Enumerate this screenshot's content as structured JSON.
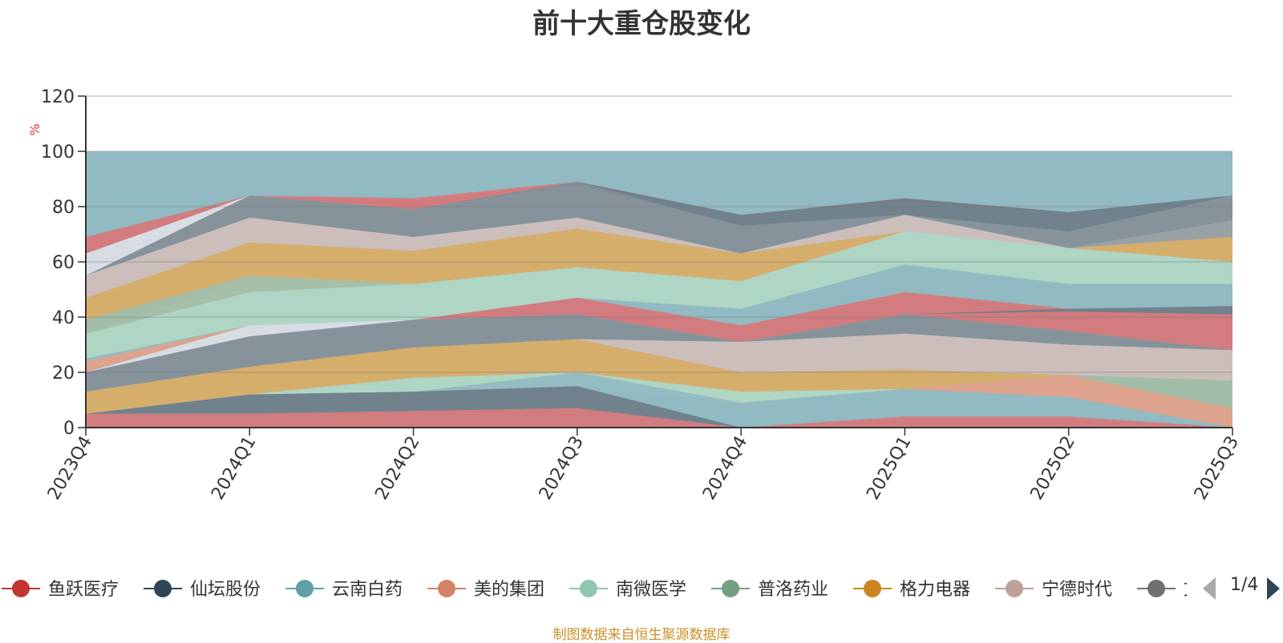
{
  "chart_data": {
    "type": "area",
    "stacked": false,
    "title": "前十大重仓股变化",
    "ylabel": "%",
    "xlabel": "",
    "ylim": [
      0,
      120
    ],
    "yticks": [
      0,
      20,
      40,
      60,
      80,
      100,
      120
    ],
    "grid": true,
    "categories": [
      "2023Q4",
      "2024Q1",
      "2024Q2",
      "2024Q3",
      "2024Q4",
      "2025Q1",
      "2025Q2",
      "2025Q3"
    ],
    "background_band": {
      "from": 0,
      "to": 100,
      "color": "#91bac2"
    },
    "bands": [
      {
        "name": "band-1",
        "color": "#d9767a",
        "lower": [
          63,
          84,
          79,
          88,
          77,
          82,
          78,
          83
        ],
        "upper": [
          69,
          84,
          83,
          89,
          77,
          83,
          78,
          83
        ]
      },
      {
        "name": "band-2",
        "color": "#dde0e6",
        "lower": [
          55,
          84,
          79,
          88,
          77,
          82,
          78,
          83
        ],
        "upper": [
          63,
          84,
          79,
          88,
          77,
          82,
          78,
          83
        ]
      },
      {
        "name": "band-3",
        "color": "#6f7d88",
        "lower": [
          55,
          84,
          79,
          88,
          73,
          77,
          71,
          84
        ],
        "upper": [
          55,
          84,
          79,
          89,
          77,
          83,
          78,
          84
        ]
      },
      {
        "name": "band-4",
        "color": "#858f97",
        "lower": [
          55,
          76,
          69,
          76,
          63,
          77,
          65,
          75
        ],
        "upper": [
          55,
          84,
          79,
          89,
          73,
          77,
          71,
          84
        ]
      },
      {
        "name": "band-5",
        "color": "#9a9ea3",
        "lower": [
          55,
          76,
          69,
          76,
          63,
          77,
          65,
          69
        ],
        "upper": [
          55,
          76,
          69,
          76,
          63,
          77,
          65,
          75
        ]
      },
      {
        "name": "band-6",
        "color": "#d1bebb",
        "lower": [
          47,
          67,
          64,
          72,
          63,
          71,
          65,
          69
        ],
        "upper": [
          55,
          76,
          69,
          76,
          63,
          77,
          65,
          69
        ]
      },
      {
        "name": "band-7",
        "color": "#dcac65",
        "lower": [
          39,
          55,
          52,
          58,
          53,
          71,
          65,
          60
        ],
        "upper": [
          47,
          67,
          64,
          72,
          63,
          71,
          65,
          69
        ]
      },
      {
        "name": "band-8",
        "color": "#b2d8c5",
        "lower": [
          25,
          49,
          52,
          58,
          53,
          59,
          52,
          52
        ],
        "upper": [
          34,
          55,
          52,
          58,
          53,
          71,
          65,
          60
        ]
      },
      {
        "name": "band-9",
        "color": "#a4bda5",
        "lower": [
          34,
          49,
          52,
          58,
          53,
          71,
          65,
          60
        ],
        "upper": [
          39,
          55,
          52,
          58,
          53,
          71,
          65,
          60
        ]
      },
      {
        "name": "band-10",
        "color": "#b2d8c5",
        "lower": [
          25,
          37,
          39,
          47,
          43,
          59,
          52,
          52
        ],
        "upper": [
          25,
          49,
          52,
          58,
          53,
          59,
          52,
          52
        ]
      },
      {
        "name": "band-11",
        "color": "#91bac2",
        "lower": [
          25,
          37,
          39,
          47,
          37,
          49,
          43,
          44
        ],
        "upper": [
          25,
          37,
          39,
          47,
          43,
          59,
          52,
          52
        ]
      },
      {
        "name": "band-12",
        "color": "#d9767a",
        "lower": [
          24,
          37,
          39,
          41,
          31,
          41,
          35,
          28
        ],
        "upper": [
          24,
          37,
          39,
          47,
          37,
          49,
          43,
          41
        ]
      },
      {
        "name": "band-13",
        "color": "#6f7d88",
        "lower": [
          41,
          41,
          41,
          41,
          41,
          41,
          42,
          41
        ],
        "upper": [
          41,
          41,
          41,
          41,
          41,
          41,
          43,
          44
        ]
      },
      {
        "name": "band-14",
        "color": "#e3a18a",
        "lower": [
          20,
          37,
          39,
          41,
          31,
          41,
          35,
          28
        ],
        "upper": [
          24,
          37,
          39,
          41,
          31,
          41,
          35,
          28
        ]
      },
      {
        "name": "band-15",
        "color": "#dde0e6",
        "lower": [
          20,
          33,
          39,
          41,
          31,
          41,
          35,
          28
        ],
        "upper": [
          20,
          37,
          39,
          41,
          31,
          41,
          35,
          28
        ]
      },
      {
        "name": "band-16",
        "color": "#858f97",
        "lower": [
          20,
          33,
          39,
          32,
          31,
          34,
          30,
          28
        ],
        "upper": [
          20,
          33,
          39,
          41,
          31,
          41,
          35,
          28
        ]
      },
      {
        "name": "band-17",
        "color": "#858f97",
        "lower": [
          13,
          22,
          29,
          32,
          31,
          34,
          30,
          28
        ],
        "upper": [
          20,
          33,
          39,
          32,
          31,
          34,
          30,
          28
        ]
      },
      {
        "name": "band-18",
        "color": "#d1bebb",
        "lower": [
          13,
          22,
          29,
          32,
          20,
          21,
          19,
          17
        ],
        "upper": [
          13,
          22,
          29,
          32,
          31,
          34,
          30,
          28
        ]
      },
      {
        "name": "band-19",
        "color": "#dcac65",
        "lower": [
          5,
          12,
          18,
          20,
          13,
          14,
          19,
          17
        ],
        "upper": [
          13,
          22,
          29,
          32,
          20,
          21,
          19,
          17
        ]
      },
      {
        "name": "band-20",
        "color": "#a4bda5",
        "lower": [
          5,
          12,
          13,
          15,
          9,
          14,
          11,
          7
        ],
        "upper": [
          5,
          12,
          13,
          15,
          13,
          14,
          19,
          17
        ]
      },
      {
        "name": "band-21",
        "color": "#e3a18a",
        "lower": [
          5,
          12,
          13,
          15,
          9,
          14,
          11,
          0
        ],
        "upper": [
          5,
          12,
          13,
          15,
          9,
          14,
          19,
          7
        ]
      },
      {
        "name": "band-22",
        "color": "#b2d8c5",
        "lower": [
          5,
          12,
          13,
          15,
          9,
          14,
          11,
          0
        ],
        "upper": [
          5,
          12,
          18,
          20,
          13,
          14,
          11,
          0
        ]
      },
      {
        "name": "band-23",
        "color": "#91bac2",
        "lower": [
          5,
          5,
          6,
          7,
          0,
          4,
          4,
          0
        ],
        "upper": [
          5,
          12,
          13,
          20,
          9,
          14,
          11,
          0
        ]
      },
      {
        "name": "band-24",
        "color": "#6f7d88",
        "lower": [
          5,
          5,
          6,
          7,
          0,
          4,
          4,
          0
        ],
        "upper": [
          5,
          12,
          13,
          15,
          0,
          4,
          4,
          0
        ]
      },
      {
        "name": "band-25",
        "color": "#d9767a",
        "lower": [
          0,
          0,
          0,
          0,
          0,
          0,
          0,
          0
        ],
        "upper": [
          5,
          5,
          6,
          7,
          0,
          4,
          4,
          0
        ]
      }
    ]
  },
  "legend": {
    "items": [
      {
        "label": "鱼跃医疗",
        "color": "#c23531"
      },
      {
        "label": "仙坛股份",
        "color": "#2f4554"
      },
      {
        "label": "云南白药",
        "color": "#61a0a8"
      },
      {
        "label": "美的集团",
        "color": "#d48265"
      },
      {
        "label": "南微医学",
        "color": "#91c7ae"
      },
      {
        "label": "普洛药业",
        "color": "#749f83"
      },
      {
        "label": "格力电器",
        "color": "#ca8622"
      },
      {
        "label": "宁德时代",
        "color": "#bda29a"
      },
      {
        "label": "文",
        "color": "#6e7074"
      }
    ],
    "page": "1/4"
  },
  "source_note": "制图数据来自恒生聚源数据库"
}
